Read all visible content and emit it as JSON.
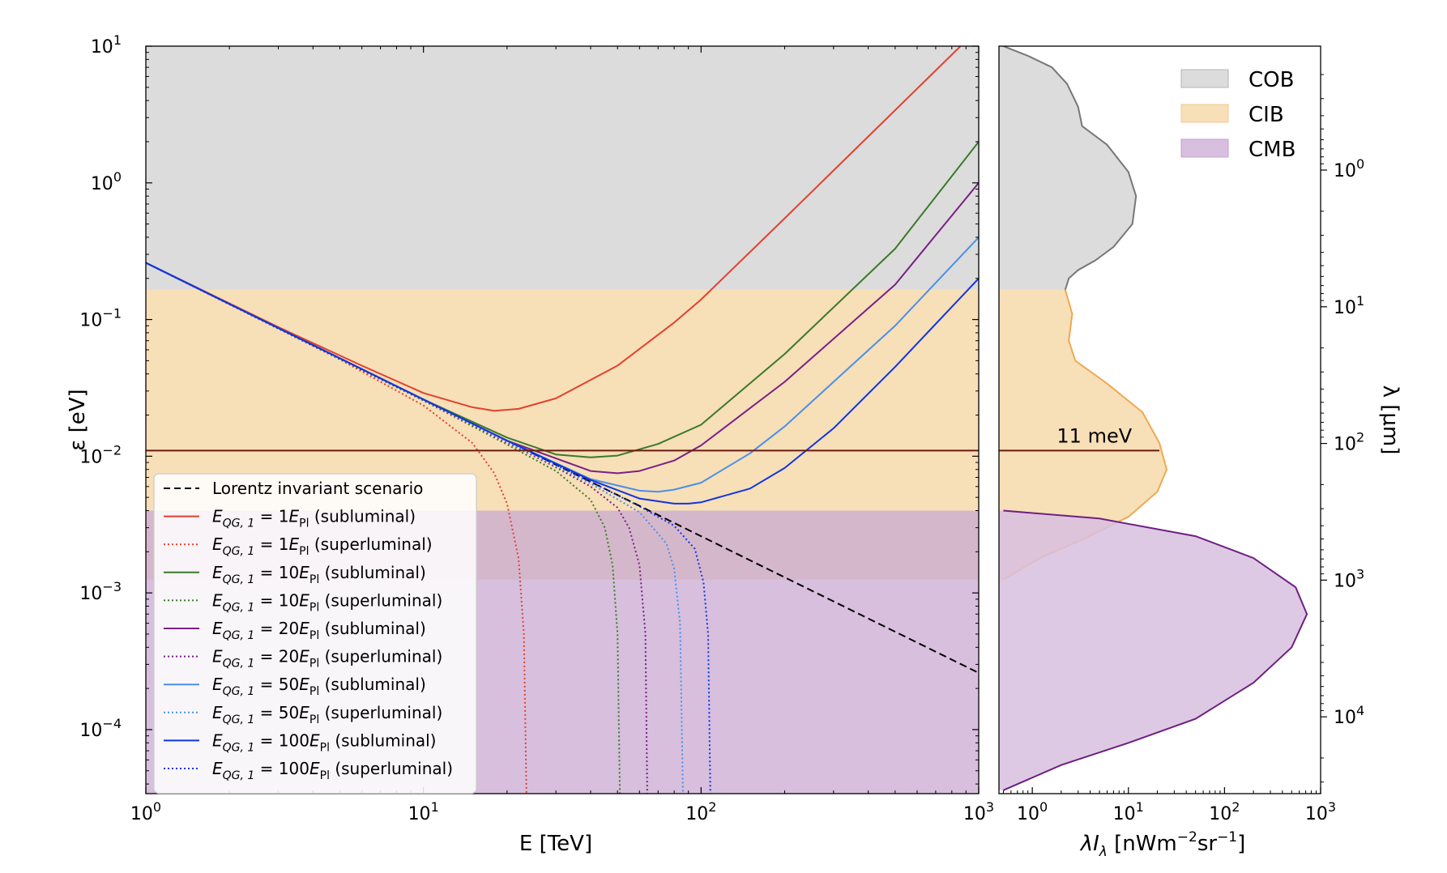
{
  "chart_data": [
    {
      "type": "line",
      "xlabel": "E  [TeV]",
      "ylabel": "ε [eV]",
      "xscale": "log",
      "yscale": "log",
      "xlim": [
        1,
        1000
      ],
      "ylim": [
        3.4e-05,
        10
      ],
      "x_ticks": [
        {
          "value": 1,
          "label": "10",
          "exp": "0"
        },
        {
          "value": 10,
          "label": "10",
          "exp": "1"
        },
        {
          "value": 100,
          "label": "10",
          "exp": "2"
        },
        {
          "value": 1000,
          "label": "10",
          "exp": "3"
        }
      ],
      "y_ticks": [
        {
          "value": 0.0001,
          "label": "10",
          "exp": "−4"
        },
        {
          "value": 0.001,
          "label": "10",
          "exp": "−3"
        },
        {
          "value": 0.01,
          "label": "10",
          "exp": "−2"
        },
        {
          "value": 0.1,
          "label": "10",
          "exp": "−1"
        },
        {
          "value": 1,
          "label": "10",
          "exp": "0"
        },
        {
          "value": 10,
          "label": "10",
          "exp": "1"
        }
      ],
      "bands": [
        {
          "name": "COB",
          "y_min": 0.165,
          "y_max": 10,
          "color": "#dcdcdc"
        },
        {
          "name": "CIB",
          "y_min": 0.00125,
          "y_max": 0.165,
          "color": "#f7dfb8"
        },
        {
          "name": "CMB",
          "y_min": 3.4e-05,
          "y_max": 0.004,
          "color": "#c9a9d1"
        }
      ],
      "reference_line": {
        "y": 0.011,
        "color": "#6b1a10"
      },
      "legend_position": "lower-left",
      "legend": [
        {
          "text": "Lorentz invariant scenario",
          "color": "#000000",
          "style": "dashed",
          "math": false
        },
        {
          "pre": "E",
          "sub": "QG, 1",
          "mid": " = 1E",
          "sub2": "Pl",
          "post": " (subluminal)",
          "color": "#e2412e",
          "style": "solid",
          "math": true
        },
        {
          "pre": "E",
          "sub": "QG, 1",
          "mid": " = 1E",
          "sub2": "Pl",
          "post": " (superluminal)",
          "color": "#e2412e",
          "style": "dotted",
          "math": true
        },
        {
          "pre": "E",
          "sub": "QG, 1",
          "mid": " = 10E",
          "sub2": "Pl",
          "post": " (subluminal)",
          "color": "#3a7a2a",
          "style": "solid",
          "math": true
        },
        {
          "pre": "E",
          "sub": "QG, 1",
          "mid": " = 10E",
          "sub2": "Pl",
          "post": " (superluminal)",
          "color": "#3a7a2a",
          "style": "dotted",
          "math": true
        },
        {
          "pre": "E",
          "sub": "QG, 1",
          "mid": " = 20E",
          "sub2": "Pl",
          "post": " (subluminal)",
          "color": "#7a1f86",
          "style": "solid",
          "math": true
        },
        {
          "pre": "E",
          "sub": "QG, 1",
          "mid": " = 20E",
          "sub2": "Pl",
          "post": " (superluminal)",
          "color": "#7a1f86",
          "style": "dotted",
          "math": true
        },
        {
          "pre": "E",
          "sub": "QG, 1",
          "mid": " = 50E",
          "sub2": "Pl",
          "post": " (subluminal)",
          "color": "#4a90e6",
          "style": "solid",
          "math": true
        },
        {
          "pre": "E",
          "sub": "QG, 1",
          "mid": " = 50E",
          "sub2": "Pl",
          "post": " (superluminal)",
          "color": "#4a90e6",
          "style": "dotted",
          "math": true
        },
        {
          "pre": "E",
          "sub": "QG, 1",
          "mid": " = 100E",
          "sub2": "Pl",
          "post": " (subluminal)",
          "color": "#1035e0",
          "style": "solid",
          "math": true
        },
        {
          "pre": "E",
          "sub": "QG, 1",
          "mid": " = 100E",
          "sub2": "Pl",
          "post": " (superluminal)",
          "color": "#1035e0",
          "style": "dotted",
          "math": true
        }
      ],
      "series": [
        {
          "style": "dashed",
          "color": "#000000",
          "x": [
            1,
            3,
            10,
            30,
            100,
            300,
            1000
          ],
          "y": [
            0.26,
            0.0867,
            0.026,
            0.00867,
            0.0026,
            0.000867,
            0.00026
          ]
        },
        {
          "style": "solid",
          "color": "#e2412e",
          "x": [
            1,
            3,
            6,
            10,
            15,
            18,
            22,
            30,
            50,
            80,
            100,
            200,
            500,
            1000
          ],
          "y": [
            0.26,
            0.088,
            0.046,
            0.029,
            0.0228,
            0.0215,
            0.0222,
            0.0265,
            0.046,
            0.095,
            0.14,
            0.55,
            3.4,
            13.5
          ]
        },
        {
          "style": "dotted",
          "color": "#e2412e",
          "x": [
            1,
            5,
            10,
            15,
            18,
            20,
            22,
            23,
            23.5
          ],
          "y": [
            0.26,
            0.051,
            0.0235,
            0.0125,
            0.0075,
            0.0045,
            0.0018,
            0.0005,
            3.4e-05
          ]
        },
        {
          "style": "solid",
          "color": "#3a7a2a",
          "x": [
            1,
            5,
            10,
            20,
            30,
            40,
            50,
            70,
            100,
            200,
            500,
            1000
          ],
          "y": [
            0.26,
            0.052,
            0.026,
            0.0137,
            0.0103,
            0.0098,
            0.0101,
            0.0123,
            0.017,
            0.056,
            0.33,
            2.0
          ]
        },
        {
          "style": "dotted",
          "color": "#3a7a2a",
          "x": [
            1,
            10,
            20,
            30,
            40,
            45,
            48,
            50,
            51
          ],
          "y": [
            0.26,
            0.0255,
            0.0122,
            0.0078,
            0.0048,
            0.003,
            0.0016,
            0.0005,
            3.4e-05
          ]
        },
        {
          "style": "solid",
          "color": "#7a1f86",
          "x": [
            1,
            5,
            10,
            20,
            40,
            50,
            60,
            80,
            100,
            200,
            500,
            1000
          ],
          "y": [
            0.26,
            0.052,
            0.026,
            0.013,
            0.0078,
            0.0075,
            0.0078,
            0.0093,
            0.012,
            0.035,
            0.18,
            1.0
          ]
        },
        {
          "style": "dotted",
          "color": "#7a1f86",
          "x": [
            1,
            10,
            20,
            30,
            40,
            50,
            55,
            60,
            63,
            64
          ],
          "y": [
            0.26,
            0.0258,
            0.0126,
            0.0083,
            0.006,
            0.0042,
            0.003,
            0.0016,
            0.0005,
            3.4e-05
          ]
        },
        {
          "style": "solid",
          "color": "#4a90e6",
          "x": [
            1,
            10,
            20,
            40,
            60,
            70,
            80,
            100,
            150,
            200,
            500,
            1000
          ],
          "y": [
            0.26,
            0.026,
            0.013,
            0.0068,
            0.0056,
            0.0055,
            0.0057,
            0.0064,
            0.0105,
            0.0165,
            0.09,
            0.4
          ]
        },
        {
          "style": "dotted",
          "color": "#4a90e6",
          "x": [
            1,
            10,
            20,
            40,
            60,
            75,
            80,
            84,
            86
          ],
          "y": [
            0.26,
            0.026,
            0.0128,
            0.0063,
            0.0039,
            0.0023,
            0.0015,
            0.0006,
            3.4e-05
          ]
        },
        {
          "style": "solid",
          "color": "#1035e0",
          "x": [
            1,
            10,
            20,
            40,
            60,
            80,
            90,
            100,
            150,
            200,
            300,
            500,
            1000
          ],
          "y": [
            0.26,
            0.026,
            0.013,
            0.0067,
            0.0049,
            0.0045,
            0.0045,
            0.0046,
            0.0058,
            0.0082,
            0.016,
            0.045,
            0.2
          ]
        },
        {
          "style": "dotted",
          "color": "#1035e0",
          "x": [
            1,
            10,
            20,
            40,
            60,
            80,
            95,
            102,
            106,
            108
          ],
          "y": [
            0.26,
            0.026,
            0.013,
            0.0065,
            0.0043,
            0.0031,
            0.0021,
            0.0012,
            0.0005,
            3.4e-05
          ]
        }
      ]
    },
    {
      "type": "area",
      "xlabel_parts": {
        "pre": "λI",
        "sub": "λ",
        "unit_a": " [nWm",
        "exp_a": "−2",
        "unit_b": "sr",
        "exp_b": "−1",
        "unit_c": "]"
      },
      "ylabel": "λ [μm]",
      "xscale": "log",
      "yscale": "log",
      "xlim": [
        0.45,
        1000
      ],
      "x_ticks": [
        {
          "value": 1,
          "label": "10",
          "exp": "0"
        },
        {
          "value": 10,
          "label": "10",
          "exp": "1"
        },
        {
          "value": 100,
          "label": "10",
          "exp": "2"
        },
        {
          "value": 1000,
          "label": "10",
          "exp": "3"
        }
      ],
      "y_ticks_right": [
        {
          "eps": 1.24,
          "label": "10",
          "exp": "0"
        },
        {
          "eps": 0.124,
          "label": "10",
          "exp": "1"
        },
        {
          "eps": 0.0124,
          "label": "10",
          "exp": "2"
        },
        {
          "eps": 0.00124,
          "label": "10",
          "exp": "3"
        },
        {
          "eps": 0.000124,
          "label": "10",
          "exp": "4"
        }
      ],
      "annotation": "11 meV",
      "legend_position": "upper-right",
      "legend": [
        {
          "name": "COB",
          "fill": "#dcdcdc",
          "edge": "#b5b5b5"
        },
        {
          "name": "CIB",
          "fill": "#f7dfb8",
          "edge": "#f0c890"
        },
        {
          "name": "CMB",
          "fill": "#d8bfdf",
          "edge": "#c3a0cc"
        }
      ],
      "regions": [
        {
          "name": "COB",
          "fill": "#dcdcdc",
          "stroke": "#777777",
          "x": [
            0.5,
            0.9,
            1.6,
            2.3,
            3,
            3.3,
            6,
            10,
            12,
            11,
            7,
            4.5,
            3,
            2.4,
            2.2
          ],
          "eps": [
            10,
            8.5,
            7,
            5.3,
            3.6,
            2.6,
            1.9,
            1.2,
            0.8,
            0.5,
            0.34,
            0.27,
            0.23,
            0.2,
            0.165
          ]
        },
        {
          "name": "CIB",
          "fill": "#f7dfb8",
          "stroke": "#f0a850",
          "x": [
            2.2,
            2.6,
            2.4,
            2.8,
            6,
            14,
            21,
            25,
            20,
            10,
            3.5,
            1.2,
            0.5
          ],
          "eps": [
            0.165,
            0.11,
            0.07,
            0.05,
            0.034,
            0.021,
            0.0125,
            0.008,
            0.0055,
            0.0036,
            0.0025,
            0.0018,
            0.00125
          ]
        },
        {
          "name": "CMB",
          "fill": "#d8bfdf",
          "stroke": "#6e1f82",
          "x": [
            0.5,
            5,
            50,
            200,
            550,
            720,
            500,
            200,
            50,
            10,
            2,
            0.5
          ],
          "eps": [
            0.004,
            0.0035,
            0.0026,
            0.0018,
            0.0011,
            0.0007,
            0.0004,
            0.00022,
            0.00012,
            8e-05,
            5.5e-05,
            3.6e-05
          ]
        }
      ]
    }
  ]
}
